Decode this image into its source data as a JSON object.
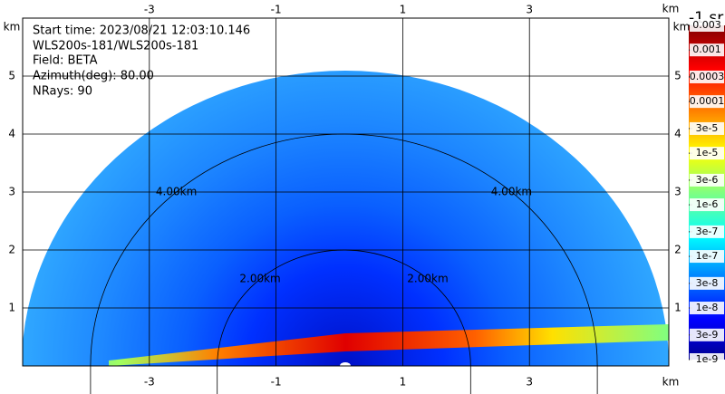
{
  "chart_data": {
    "type": "rhi",
    "annotations": [
      "Start time: 2023/08/21 12:03:10.146",
      "WLS200s-181/WLS200s-181",
      "Field: BETA",
      "Azimuth(deg): 80.00",
      "NRays: 90"
    ],
    "unit": "km",
    "xlim": [
      -5,
      5.2
    ],
    "ylim": [
      0,
      6
    ],
    "xticks": [
      -3,
      -1,
      1,
      3
    ],
    "yticks": [
      1,
      2,
      3,
      4,
      5
    ],
    "grid": true,
    "rings": [
      {
        "value": 2,
        "label": "2.00km"
      },
      {
        "value": 4,
        "label": "4.00km"
      }
    ],
    "colorbar": {
      "label": "-1 sr",
      "log": true,
      "lim": [
        1e-09,
        0.003
      ],
      "ticks": [
        0.003,
        0.001,
        0.0003,
        0.0001,
        {
          "value": 3e-05,
          "label": "3e-5"
        },
        {
          "value": 1e-05,
          "label": "1e-5"
        },
        {
          "value": 3e-06,
          "label": "3e-6"
        },
        {
          "value": 1e-06,
          "label": "1e-6"
        },
        {
          "value": 3e-07,
          "label": "3e-7"
        },
        {
          "value": 1e-07,
          "label": "1e-7"
        },
        {
          "value": 3e-08,
          "label": "3e-8"
        },
        {
          "value": 1e-08,
          "label": "1e-8"
        },
        {
          "value": 3e-09,
          "label": "3e-9"
        },
        {
          "value": 1e-09,
          "label": "1e-9"
        }
      ]
    }
  }
}
